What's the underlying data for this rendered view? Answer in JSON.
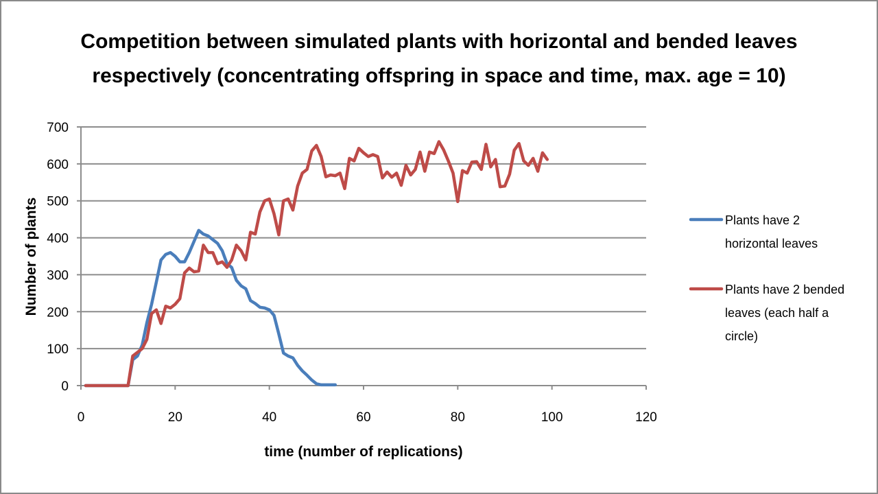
{
  "chart_data": {
    "type": "line",
    "title": [
      "Competition between simulated plants with horizontal and bended leaves",
      "respectively (concentrating offspring in space and time, max. age = 10)"
    ],
    "xlabel": "time (number of replications)",
    "ylabel": "Number of plants",
    "xlim": [
      0,
      120
    ],
    "ylim": [
      0,
      700
    ],
    "xticks": [
      0,
      20,
      40,
      60,
      80,
      100,
      120
    ],
    "yticks": [
      0,
      100,
      200,
      300,
      400,
      500,
      600,
      700
    ],
    "grid": "horizontal",
    "legend_position": "right",
    "series": [
      {
        "name": [
          "Plants have 2",
          "horizontal  leaves"
        ],
        "color": "#4a7ebb",
        "x": [
          1,
          2,
          3,
          4,
          5,
          6,
          7,
          8,
          9,
          10,
          11,
          12,
          13,
          14,
          15,
          16,
          17,
          18,
          19,
          20,
          21,
          22,
          23,
          24,
          25,
          26,
          27,
          28,
          29,
          30,
          31,
          32,
          33,
          34,
          35,
          36,
          37,
          38,
          39,
          40,
          41,
          42,
          43,
          44,
          45,
          46,
          47,
          48,
          49,
          50,
          51,
          52,
          53,
          54
        ],
        "y": [
          0,
          0,
          0,
          0,
          0,
          0,
          0,
          0,
          0,
          0,
          70,
          80,
          110,
          170,
          220,
          280,
          340,
          355,
          360,
          350,
          335,
          335,
          360,
          390,
          420,
          410,
          405,
          395,
          385,
          365,
          330,
          320,
          285,
          270,
          262,
          230,
          222,
          212,
          210,
          205,
          190,
          140,
          88,
          80,
          75,
          55,
          40,
          28,
          15,
          5,
          2,
          2,
          2,
          2
        ]
      },
      {
        "name": [
          "Plants have 2 bended",
          "leaves (each half a",
          "circle)"
        ],
        "color": "#be4b48",
        "x": [
          1,
          2,
          3,
          4,
          5,
          6,
          7,
          8,
          9,
          10,
          11,
          12,
          13,
          14,
          15,
          16,
          17,
          18,
          19,
          20,
          21,
          22,
          23,
          24,
          25,
          26,
          27,
          28,
          29,
          30,
          31,
          32,
          33,
          34,
          35,
          36,
          37,
          38,
          39,
          40,
          41,
          42,
          43,
          44,
          45,
          46,
          47,
          48,
          49,
          50,
          51,
          52,
          53,
          54,
          55,
          56,
          57,
          58,
          59,
          60,
          61,
          62,
          63,
          64,
          65,
          66,
          67,
          68,
          69,
          70,
          71,
          72,
          73,
          74,
          75,
          76,
          77,
          78,
          79,
          80,
          81,
          82,
          83,
          84,
          85,
          86,
          87,
          88,
          89,
          90,
          91,
          92,
          93,
          94,
          95,
          96,
          97,
          98,
          99
        ],
        "y": [
          0,
          0,
          0,
          0,
          0,
          0,
          0,
          0,
          0,
          0,
          80,
          90,
          100,
          125,
          195,
          205,
          168,
          215,
          210,
          220,
          235,
          305,
          318,
          308,
          310,
          380,
          360,
          360,
          330,
          335,
          320,
          340,
          380,
          365,
          340,
          415,
          410,
          470,
          500,
          505,
          465,
          408,
          500,
          505,
          475,
          540,
          575,
          585,
          635,
          650,
          620,
          565,
          570,
          568,
          575,
          533,
          615,
          608,
          642,
          630,
          620,
          625,
          620,
          562,
          578,
          564,
          575,
          542,
          596,
          570,
          585,
          632,
          580,
          632,
          628,
          660,
          638,
          608,
          575,
          498,
          582,
          575,
          605,
          606,
          585,
          653,
          592,
          612,
          538,
          540,
          572,
          637,
          655,
          608,
          596,
          615,
          580,
          630,
          612
        ]
      }
    ]
  }
}
